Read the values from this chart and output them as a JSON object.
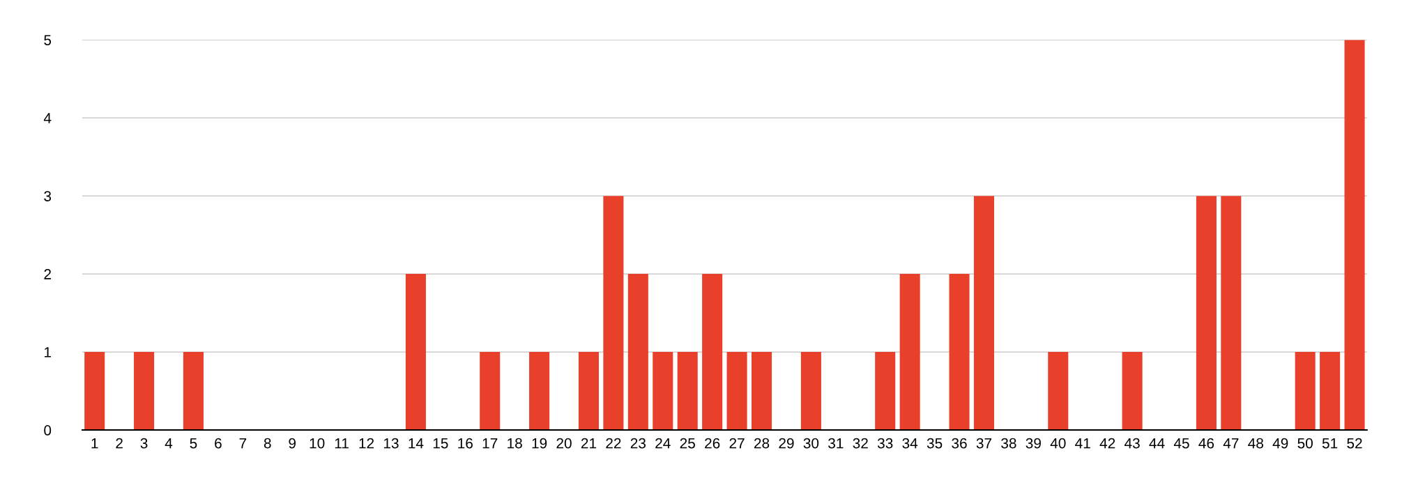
{
  "chart_data": {
    "type": "bar",
    "categories": [
      "1",
      "2",
      "3",
      "4",
      "5",
      "6",
      "7",
      "8",
      "9",
      "10",
      "11",
      "12",
      "13",
      "14",
      "15",
      "16",
      "17",
      "18",
      "19",
      "20",
      "21",
      "22",
      "23",
      "24",
      "25",
      "26",
      "27",
      "28",
      "29",
      "30",
      "31",
      "32",
      "33",
      "34",
      "35",
      "36",
      "37",
      "38",
      "39",
      "40",
      "41",
      "42",
      "43",
      "44",
      "45",
      "46",
      "47",
      "48",
      "49",
      "50",
      "51",
      "52"
    ],
    "values": [
      1,
      0,
      1,
      0,
      1,
      0,
      0,
      0,
      0,
      0,
      0,
      0,
      0,
      2,
      0,
      0,
      1,
      0,
      1,
      0,
      1,
      3,
      2,
      1,
      1,
      2,
      1,
      1,
      0,
      1,
      0,
      0,
      1,
      2,
      0,
      2,
      3,
      0,
      0,
      1,
      0,
      0,
      1,
      0,
      0,
      3,
      3,
      0,
      0,
      1,
      1,
      5
    ],
    "color": "#e8402a",
    "ylim": [
      0,
      5
    ],
    "yticks": [
      0,
      1,
      2,
      3,
      4,
      5
    ],
    "grid": "y"
  }
}
